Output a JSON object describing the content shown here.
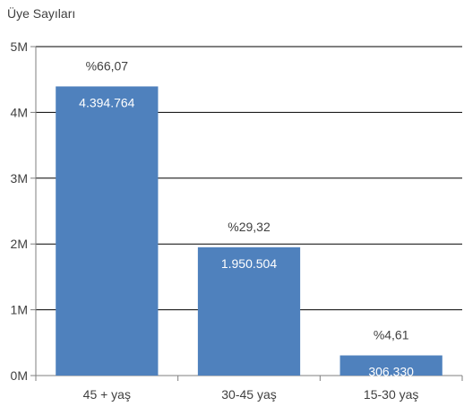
{
  "chart_data": {
    "type": "bar",
    "ylabel": "Üye Sayıları",
    "xlabel": "",
    "categories": [
      "45 + yaş",
      "30-45 yaş",
      "15-30 yaş"
    ],
    "values": [
      4394764,
      1950504,
      306330
    ],
    "value_labels": [
      "4.394.764",
      "1.950.504",
      "306.330"
    ],
    "percent_labels": [
      "%66,07",
      "%29,32",
      "%4,61"
    ],
    "y_ticks": [
      0,
      1000000,
      2000000,
      3000000,
      4000000,
      5000000
    ],
    "y_tick_labels": [
      "0M",
      "1M",
      "2M",
      "3M",
      "4M",
      "5M"
    ],
    "ylim": [
      0,
      5000000
    ],
    "grid": true,
    "bar_color": "#4f81bd",
    "value_label_color": "#ffffff",
    "text_color": "#404040",
    "axis_color": "#7f7f7f"
  }
}
